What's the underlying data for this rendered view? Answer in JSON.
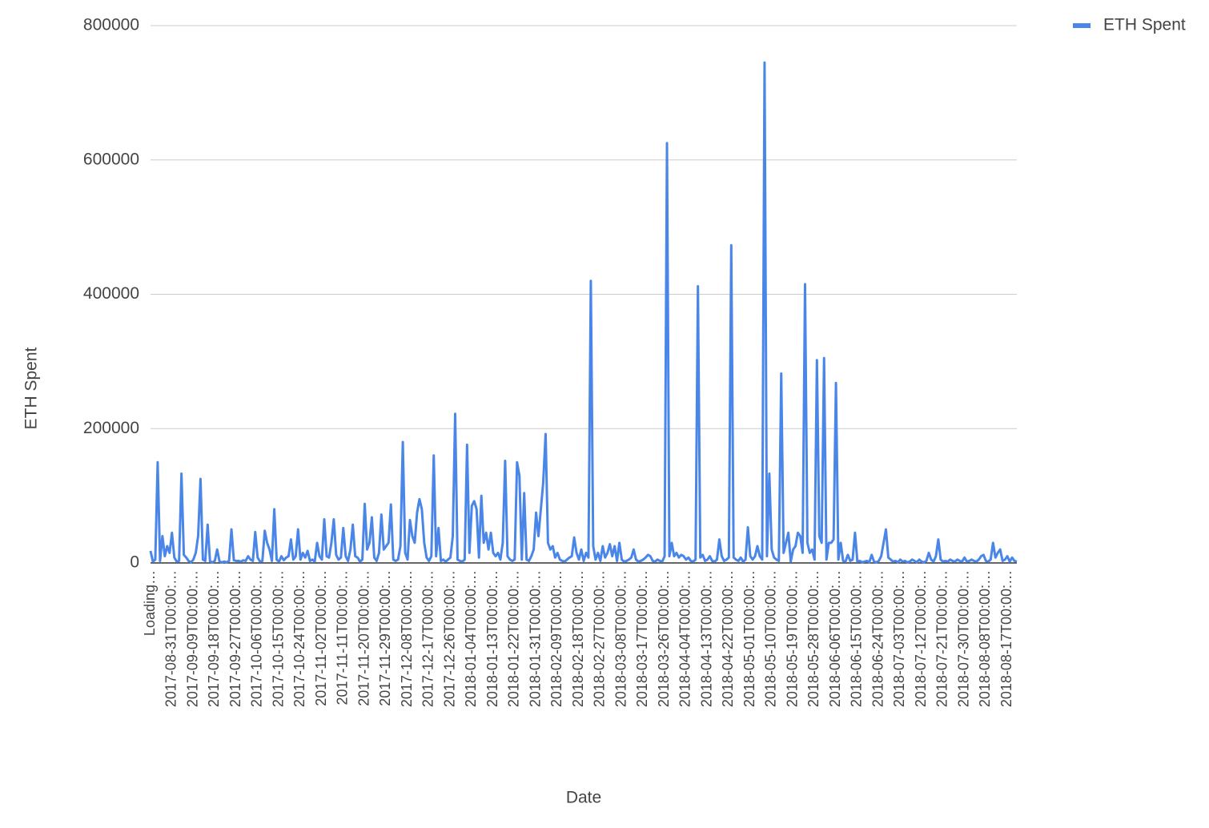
{
  "chart_data": {
    "type": "line",
    "x_label": "Date",
    "y_label": "ETH Spent",
    "categories": [
      "Loading…",
      null,
      null,
      null,
      null,
      null,
      null,
      null,
      null,
      "2017-08-31T00:00:…",
      null,
      null,
      null,
      null,
      null,
      null,
      null,
      null,
      "2017-09-09T00:00:…",
      null,
      null,
      null,
      null,
      null,
      null,
      null,
      null,
      "2017-09-18T00:00:…",
      null,
      null,
      null,
      null,
      null,
      null,
      null,
      null,
      "2017-09-27T00:00:…",
      null,
      null,
      null,
      null,
      null,
      null,
      null,
      null,
      "2017-10-06T00:00:…",
      null,
      null,
      null,
      null,
      null,
      null,
      null,
      null,
      "2017-10-15T00:00:…",
      null,
      null,
      null,
      null,
      null,
      null,
      null,
      null,
      "2017-10-24T00:00:…",
      null,
      null,
      null,
      null,
      null,
      null,
      null,
      null,
      "2017-11-02T00:00:…",
      null,
      null,
      null,
      null,
      null,
      null,
      null,
      null,
      "2017-11-11T00:00:…",
      null,
      null,
      null,
      null,
      null,
      null,
      null,
      null,
      "2017-11-20T00:00:…",
      null,
      null,
      null,
      null,
      null,
      null,
      null,
      null,
      "2017-11-29T00:00:…",
      null,
      null,
      null,
      null,
      null,
      null,
      null,
      null,
      "2017-12-08T00:00:…",
      null,
      null,
      null,
      null,
      null,
      null,
      null,
      null,
      "2017-12-17T00:00:…",
      null,
      null,
      null,
      null,
      null,
      null,
      null,
      null,
      "2017-12-26T00:00:…",
      null,
      null,
      null,
      null,
      null,
      null,
      null,
      null,
      "2018-01-04T00:00:…",
      null,
      null,
      null,
      null,
      null,
      null,
      null,
      null,
      "2018-01-13T00:00:…",
      null,
      null,
      null,
      null,
      null,
      null,
      null,
      null,
      "2018-01-22T00:00:…",
      null,
      null,
      null,
      null,
      null,
      null,
      null,
      null,
      "2018-01-31T00:00:…",
      null,
      null,
      null,
      null,
      null,
      null,
      null,
      null,
      "2018-02-09T00:00:…",
      null,
      null,
      null,
      null,
      null,
      null,
      null,
      null,
      "2018-02-18T00:00:…",
      null,
      null,
      null,
      null,
      null,
      null,
      null,
      null,
      "2018-02-27T00:00:…",
      null,
      null,
      null,
      null,
      null,
      null,
      null,
      null,
      "2018-03-08T00:00:…",
      null,
      null,
      null,
      null,
      null,
      null,
      null,
      null,
      "2018-03-17T00:00:…",
      null,
      null,
      null,
      null,
      null,
      null,
      null,
      null,
      "2018-03-26T00:00:…",
      null,
      null,
      null,
      null,
      null,
      null,
      null,
      null,
      "2018-04-04T00:00:…",
      null,
      null,
      null,
      null,
      null,
      null,
      null,
      null,
      "2018-04-13T00:00:…",
      null,
      null,
      null,
      null,
      null,
      null,
      null,
      null,
      "2018-04-22T00:00:…",
      null,
      null,
      null,
      null,
      null,
      null,
      null,
      null,
      "2018-05-01T00:00:…",
      null,
      null,
      null,
      null,
      null,
      null,
      null,
      null,
      "2018-05-10T00:00:…",
      null,
      null,
      null,
      null,
      null,
      null,
      null,
      null,
      "2018-05-19T00:00:…",
      null,
      null,
      null,
      null,
      null,
      null,
      null,
      null,
      "2018-05-28T00:00:…",
      null,
      null,
      null,
      null,
      null,
      null,
      null,
      null,
      "2018-06-06T00:00:…",
      null,
      null,
      null,
      null,
      null,
      null,
      null,
      null,
      "2018-06-15T00:00:…",
      null,
      null,
      null,
      null,
      null,
      null,
      null,
      null,
      "2018-06-24T00:00:…",
      null,
      null,
      null,
      null,
      null,
      null,
      null,
      null,
      "2018-07-03T00:00:…",
      null,
      null,
      null,
      null,
      null,
      null,
      null,
      null,
      "2018-07-12T00:00:…",
      null,
      null,
      null,
      null,
      null,
      null,
      null,
      null,
      "2018-07-21T00:00:…",
      null,
      null,
      null,
      null,
      null,
      null,
      null,
      null,
      "2018-07-30T00:00:…",
      null,
      null,
      null,
      null,
      null,
      null,
      null,
      null,
      "2018-08-08T00:00:…",
      null,
      null,
      null,
      null,
      null,
      null,
      null,
      null,
      "2018-08-17T00:00:…",
      null,
      null,
      null,
      null
    ],
    "series": [
      {
        "name": "ETH Spent",
        "color": "#4a86e8",
        "values": [
          18000,
          2000,
          5000,
          150000,
          3000,
          40000,
          10000,
          25000,
          15000,
          45000,
          8000,
          2000,
          3000,
          133000,
          12000,
          8000,
          3000,
          1000,
          5000,
          15000,
          40000,
          125000,
          5000,
          3000,
          57000,
          2000,
          1000,
          3000,
          20000,
          2000,
          1000,
          2000,
          1000,
          3000,
          50000,
          4000,
          3000,
          3000,
          2000,
          4000,
          3000,
          10000,
          5000,
          3000,
          46000,
          8000,
          2000,
          3000,
          48000,
          30000,
          20000,
          3000,
          80000,
          5000,
          2000,
          10000,
          4000,
          8000,
          10000,
          35000,
          5000,
          10000,
          50000,
          5000,
          15000,
          8000,
          18000,
          3000,
          5000,
          2000,
          30000,
          10000,
          5000,
          65000,
          10000,
          8000,
          30000,
          65000,
          12000,
          5000,
          8000,
          52000,
          10000,
          3000,
          20000,
          57000,
          10000,
          8000,
          2000,
          5000,
          88000,
          20000,
          30000,
          68000,
          8000,
          3000,
          15000,
          72000,
          20000,
          25000,
          30000,
          87000,
          5000,
          3000,
          5000,
          25000,
          180000,
          15000,
          5000,
          64000,
          40000,
          30000,
          75000,
          95000,
          80000,
          30000,
          8000,
          3000,
          10000,
          160000,
          10000,
          52000,
          3000,
          5000,
          2000,
          5000,
          8000,
          40000,
          222000,
          5000,
          3000,
          2000,
          5000,
          176000,
          15000,
          85000,
          92000,
          80000,
          8000,
          100000,
          30000,
          45000,
          20000,
          45000,
          15000,
          10000,
          15000,
          5000,
          30000,
          152000,
          10000,
          5000,
          3000,
          5000,
          150000,
          130000,
          5000,
          104000,
          5000,
          3000,
          10000,
          20000,
          75000,
          40000,
          80000,
          120000,
          192000,
          30000,
          20000,
          25000,
          8000,
          15000,
          5000,
          3000,
          2000,
          5000,
          8000,
          10000,
          38000,
          15000,
          5000,
          20000,
          3000,
          15000,
          8000,
          420000,
          25000,
          5000,
          15000,
          3000,
          25000,
          8000,
          15000,
          28000,
          10000,
          25000,
          3000,
          30000,
          5000,
          2000,
          3000,
          5000,
          8000,
          20000,
          5000,
          2000,
          3000,
          5000,
          8000,
          12000,
          10000,
          3000,
          2000,
          5000,
          3000,
          2000,
          10000,
          625000,
          10000,
          30000,
          10000,
          15000,
          8000,
          12000,
          10000,
          5000,
          8000,
          3000,
          2000,
          5000,
          412000,
          8000,
          12000,
          3000,
          5000,
          10000,
          3000,
          2000,
          5000,
          35000,
          10000,
          3000,
          5000,
          8000,
          473000,
          8000,
          5000,
          3000,
          8000,
          2000,
          5000,
          53000,
          10000,
          5000,
          10000,
          25000,
          10000,
          5000,
          745000,
          10000,
          133000,
          20000,
          8000,
          5000,
          3000,
          282000,
          15000,
          30000,
          45000,
          2000,
          20000,
          25000,
          45000,
          40000,
          15000,
          415000,
          30000,
          15000,
          20000,
          5000,
          302000,
          40000,
          30000,
          305000,
          5000,
          30000,
          30000,
          35000,
          268000,
          5000,
          30000,
          3000,
          2000,
          12000,
          3000,
          5000,
          45000,
          2000,
          3000,
          1000,
          2000,
          3000,
          1000,
          12000,
          2000,
          1000,
          3000,
          10000,
          30000,
          50000,
          8000,
          5000,
          2000,
          3000,
          1000,
          5000,
          2000,
          3000,
          1000,
          2000,
          5000,
          3000,
          1000,
          5000,
          2000,
          1000,
          3000,
          15000,
          5000,
          2000,
          10000,
          35000,
          5000,
          2000,
          3000,
          2000,
          5000,
          3000,
          2000,
          5000,
          3000,
          2000,
          8000,
          2000,
          3000,
          5000,
          3000,
          2000,
          5000,
          10000,
          12000,
          3000,
          2000,
          5000,
          30000,
          8000,
          15000,
          20000,
          3000,
          5000,
          10000,
          2000,
          8000,
          3000,
          2000
        ]
      }
    ],
    "ylim": [
      0,
      800000
    ],
    "yticks": [
      0,
      200000,
      400000,
      600000,
      800000
    ],
    "grid": true,
    "legend": "right"
  }
}
